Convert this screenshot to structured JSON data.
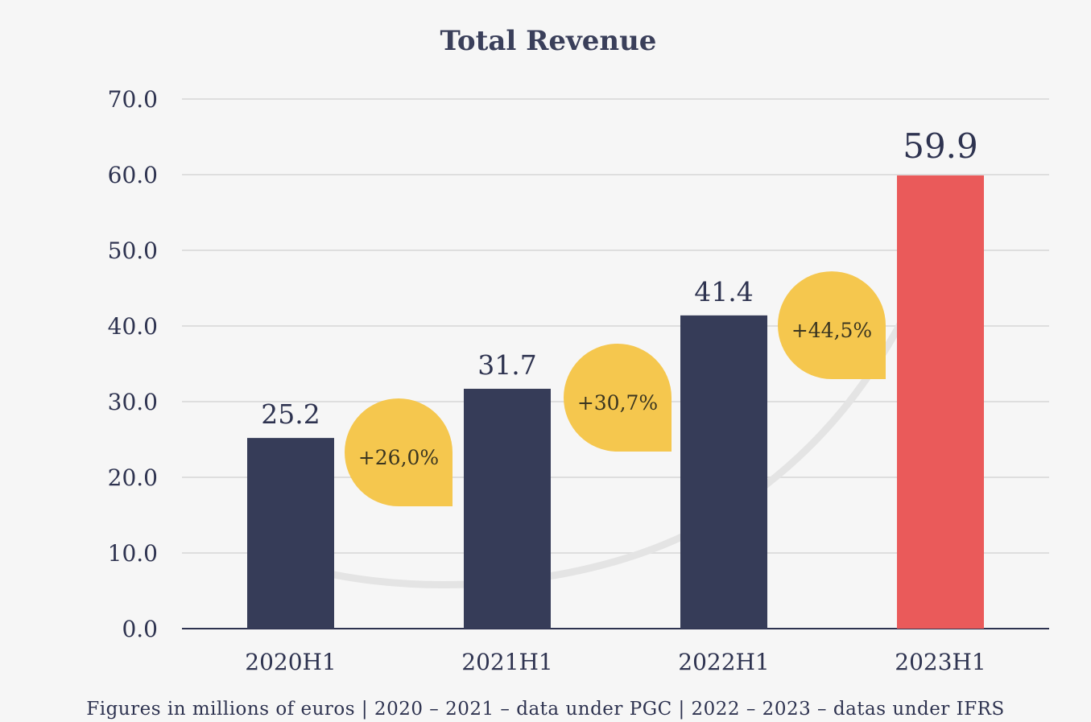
{
  "chart_data": {
    "type": "bar",
    "title": "Total Revenue",
    "categories": [
      "2020H1",
      "2021H1",
      "2022H1",
      "2023H1"
    ],
    "values": [
      25.2,
      31.7,
      41.4,
      59.9
    ],
    "value_labels": [
      "25.2",
      "31.7",
      "41.4",
      "59.9"
    ],
    "ylim": [
      0,
      70
    ],
    "yticks": [
      "0.0",
      "10.0",
      "20.0",
      "30.0",
      "40.0",
      "50.0",
      "60.0",
      "70.0"
    ],
    "grid": true,
    "colors": [
      "#363c58",
      "#363c58",
      "#363c58",
      "#ea5a5a"
    ],
    "growth_labels": [
      "+26,0%",
      "+30,7%",
      "+44,5%"
    ],
    "growth_color": "#f5c74e",
    "xlabel": "",
    "ylabel": ""
  },
  "footnote": "Figures in millions of euros   |   2020 – 2021 – data under PGC   |   2022 – 2023 – datas under IFRS"
}
